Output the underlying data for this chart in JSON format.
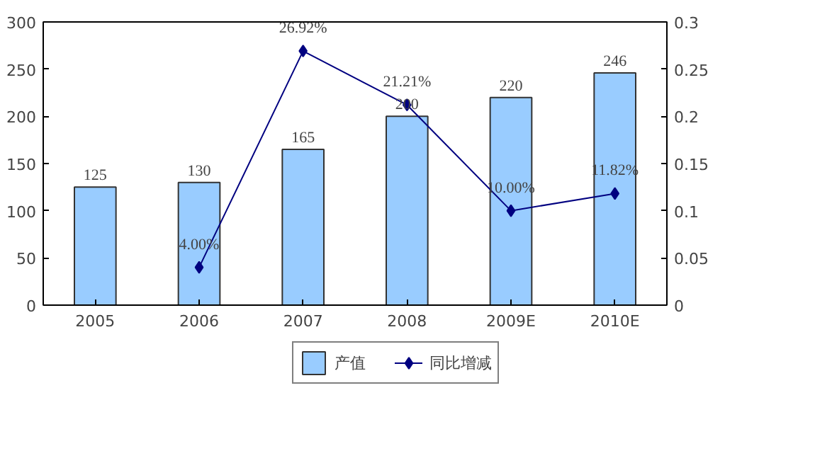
{
  "chart_data": {
    "type": "bar",
    "categories": [
      "2005",
      "2006",
      "2007",
      "2008",
      "2009E",
      "2010E"
    ],
    "series": [
      {
        "name": "产值",
        "color": "#99ccff",
        "values": [
          125,
          130,
          165,
          200,
          220,
          246
        ],
        "data_labels": true
      },
      {
        "name": "同比增减",
        "type": "line",
        "axis": "y2",
        "color": "#000080",
        "marker": "diamond",
        "values": [
          null,
          0.04,
          0.2692,
          0.2121,
          0.1,
          0.1182
        ],
        "value_labels": [
          null,
          "4.00%",
          "26.92%",
          "21.21%",
          "10.00%",
          "11.82%"
        ]
      }
    ],
    "ylim": [
      0,
      300
    ],
    "yticks": [
      0,
      50,
      100,
      150,
      200,
      250,
      300
    ],
    "y2lim": [
      0,
      0.3
    ],
    "y2ticks": [
      0,
      {
        "value": 0.05,
        "label": "0.05"
      },
      {
        "value": 0.1,
        "label": "0.1"
      },
      {
        "value": 0.15,
        "label": "0.15"
      },
      {
        "value": 0.2,
        "label": "0.2"
      },
      {
        "value": 0.25,
        "label": "0.25"
      },
      {
        "value": 0.3,
        "label": "0.3"
      }
    ],
    "legend": "bottom",
    "grid": false
  }
}
